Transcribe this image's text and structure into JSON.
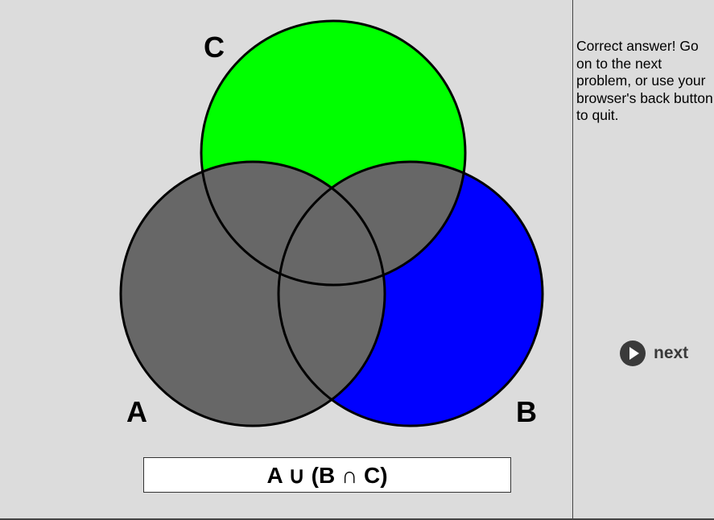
{
  "venn": {
    "label_a": "A",
    "label_b": "B",
    "label_c": "C",
    "colors": {
      "shaded": "#676767",
      "set_c": "#00ff00",
      "set_b": "#0000ff",
      "background": "#dcdcdc",
      "outline": "#000000"
    }
  },
  "expression": "A ∪ (B ∩ C)",
  "sidebar": {
    "feedback": "Correct answer! Go on to the next problem, or use your browser's back button to quit.",
    "next_label": "next",
    "next_icon": "play-circle-icon"
  }
}
